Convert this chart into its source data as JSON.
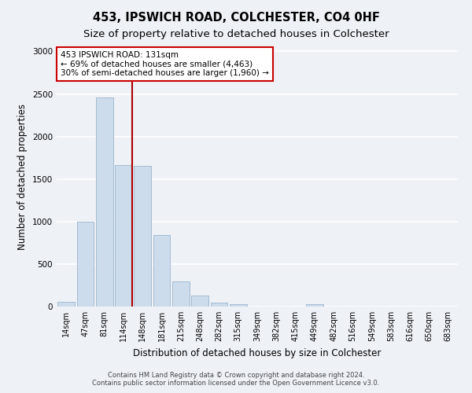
{
  "title": "453, IPSWICH ROAD, COLCHESTER, CO4 0HF",
  "subtitle": "Size of property relative to detached houses in Colchester",
  "xlabel": "Distribution of detached houses by size in Colchester",
  "ylabel": "Number of detached properties",
  "categories": [
    "14sqm",
    "47sqm",
    "81sqm",
    "114sqm",
    "148sqm",
    "181sqm",
    "215sqm",
    "248sqm",
    "282sqm",
    "315sqm",
    "349sqm",
    "382sqm",
    "415sqm",
    "449sqm",
    "482sqm",
    "516sqm",
    "549sqm",
    "583sqm",
    "616sqm",
    "650sqm",
    "683sqm"
  ],
  "values": [
    55,
    1000,
    2460,
    1660,
    1650,
    840,
    300,
    130,
    50,
    30,
    0,
    0,
    0,
    30,
    0,
    0,
    0,
    0,
    0,
    0,
    0
  ],
  "bar_color": "#ccdcec",
  "bar_edgecolor": "#9ab4cc",
  "property_line_label": "453 IPSWICH ROAD: 131sqm",
  "annotation_line1": "← 69% of detached houses are smaller (4,463)",
  "annotation_line2": "30% of semi-detached houses are larger (1,960) →",
  "annotation_box_color": "#ffffff",
  "annotation_box_edgecolor": "#cc0000",
  "vline_color": "#aa0000",
  "ylim": [
    0,
    3050
  ],
  "yticks": [
    0,
    500,
    1000,
    1500,
    2000,
    2500,
    3000
  ],
  "footer1": "Contains HM Land Registry data © Crown copyright and database right 2024.",
  "footer2": "Contains public sector information licensed under the Open Government Licence v3.0.",
  "bg_color": "#eef2f7",
  "plot_bg_color": "#eef2f7",
  "grid_color": "#ffffff",
  "title_fontsize": 10.5,
  "subtitle_fontsize": 9.5,
  "axis_label_fontsize": 8.5,
  "tick_fontsize": 7,
  "annotation_fontsize": 7.5
}
